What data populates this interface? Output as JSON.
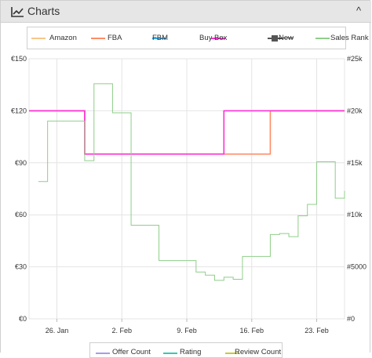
{
  "panel": {
    "title": "Charts",
    "icon": "line-chart-icon",
    "collapse_icon": "chevron-up-icon",
    "collapse_glyph": "^"
  },
  "legend_top": [
    {
      "label": "Amazon",
      "color": "#f7c78a",
      "style": "line",
      "disabled": false
    },
    {
      "label": "FBA",
      "color": "#ff8c66",
      "style": "line",
      "disabled": false
    },
    {
      "label": "FBM",
      "color": "#39a8e8",
      "style": "line",
      "disabled": false
    },
    {
      "label": "Buy Box",
      "color": "#ff2fd6",
      "style": "line",
      "disabled": false
    },
    {
      "label": "New",
      "color": "#555555",
      "style": "marker",
      "disabled": true
    },
    {
      "label": "Sales Rank",
      "color": "#8fce8a",
      "style": "line",
      "disabled": false
    }
  ],
  "legend_bottom": [
    {
      "label": "Offer Count",
      "color": "#a89be8"
    },
    {
      "label": "Rating",
      "color": "#3cc7b4"
    },
    {
      "label": "Review Count",
      "color": "#c9c937"
    }
  ],
  "chart_data": {
    "type": "line",
    "x_unit": "date",
    "x_domain": [
      "2024-01-23",
      "2024-02-26"
    ],
    "x_ticks": [
      {
        "date": "2024-01-26",
        "label": "26. Jan"
      },
      {
        "date": "2024-02-02",
        "label": "2. Feb"
      },
      {
        "date": "2024-02-09",
        "label": "9. Feb"
      },
      {
        "date": "2024-02-16",
        "label": "16. Feb"
      },
      {
        "date": "2024-02-23",
        "label": "23. Feb"
      }
    ],
    "y_left": {
      "min": 0,
      "max": 150,
      "ticks": [
        0,
        30,
        60,
        90,
        120,
        150
      ],
      "tick_labels": [
        "€0",
        "€30",
        "€60",
        "€90",
        "€120",
        "€150"
      ]
    },
    "y_right": {
      "min": 0,
      "max": 25000,
      "ticks": [
        0,
        5000,
        10000,
        15000,
        20000,
        25000
      ],
      "tick_labels": [
        "#0",
        "#5000",
        "#10k",
        "#15k",
        "#20k",
        "#25k"
      ]
    },
    "grid": true,
    "series": [
      {
        "name": "FBA",
        "axis": "left",
        "color": "#ff8c66",
        "step": true,
        "points": [
          [
            "2024-01-23",
            120
          ],
          [
            "2024-01-29",
            120
          ],
          [
            "2024-01-29",
            95
          ],
          [
            "2024-02-18",
            95
          ],
          [
            "2024-02-18",
            120
          ],
          [
            "2024-02-26",
            120
          ]
        ]
      },
      {
        "name": "Buy Box",
        "axis": "left",
        "color": "#ff2fd6",
        "step": true,
        "points": [
          [
            "2024-01-23",
            120
          ],
          [
            "2024-01-29",
            120
          ],
          [
            "2024-01-29",
            95
          ],
          [
            "2024-02-13",
            95
          ],
          [
            "2024-02-13",
            120
          ],
          [
            "2024-02-26",
            120
          ]
        ]
      },
      {
        "name": "Sales Rank",
        "axis": "right",
        "color": "#8fce8a",
        "step": true,
        "points": [
          [
            "2024-01-24",
            13200
          ],
          [
            "2024-01-25",
            19000
          ],
          [
            "2024-01-29",
            15200
          ],
          [
            "2024-01-30",
            22600
          ],
          [
            "2024-02-01",
            19800
          ],
          [
            "2024-02-03",
            9000
          ],
          [
            "2024-02-06",
            5600
          ],
          [
            "2024-02-10",
            4500
          ],
          [
            "2024-02-11",
            4200
          ],
          [
            "2024-02-12",
            3700
          ],
          [
            "2024-02-13",
            4000
          ],
          [
            "2024-02-14",
            3800
          ],
          [
            "2024-02-15",
            6000
          ],
          [
            "2024-02-18",
            8100
          ],
          [
            "2024-02-19",
            8200
          ],
          [
            "2024-02-20",
            7900
          ],
          [
            "2024-02-21",
            9900
          ],
          [
            "2024-02-22",
            11000
          ],
          [
            "2024-02-23",
            15100
          ],
          [
            "2024-02-25",
            11600
          ],
          [
            "2024-02-26",
            12300
          ]
        ]
      }
    ]
  }
}
